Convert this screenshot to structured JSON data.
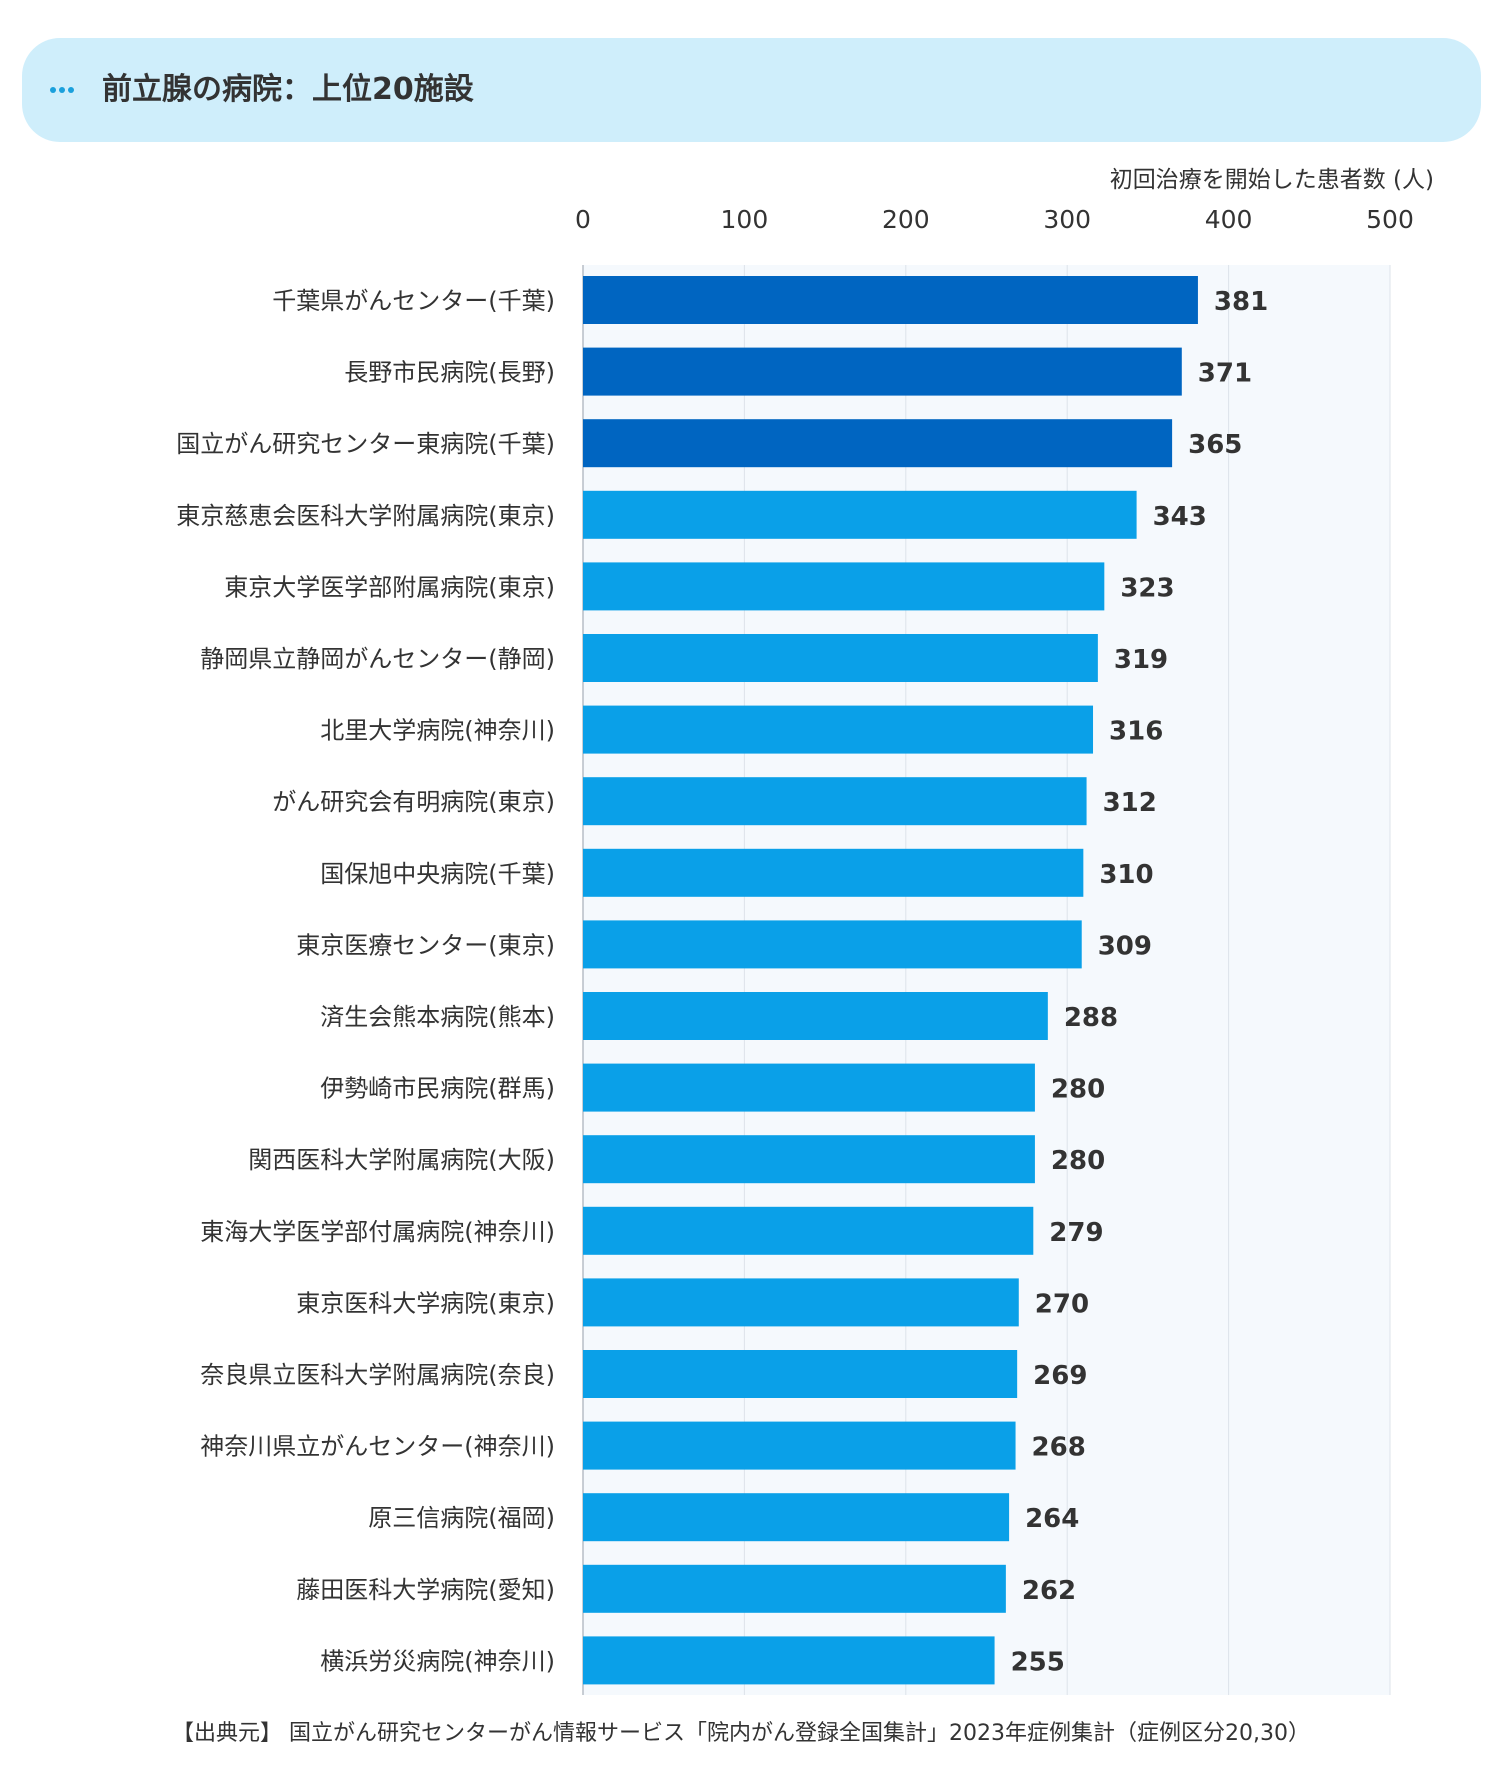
{
  "header": {
    "title": "前立腺の病院：上位20施設",
    "menu_icon": "more-dots-icon"
  },
  "colors": {
    "header_bg": "#cfeefb",
    "accent_dots": "#1aa0dc",
    "bar_top3": "#0065c1",
    "bar_rest": "#0aa0e8",
    "plot_bg": "#f5f9fd",
    "grid": "#dde3ea",
    "text": "#333333"
  },
  "source": {
    "text": "【出典元】 国立がん研究センターがん情報サービス「院内がん登録全国集計」2023年症例集計（症例区分20,30）"
  },
  "chart_data": {
    "type": "bar",
    "orientation": "horizontal",
    "xlabel": "初回治療を開始した患者数 (人)",
    "xlim": [
      0,
      500
    ],
    "xticks": [
      0,
      100,
      200,
      300,
      400,
      500
    ],
    "grid": true,
    "data_labels": true,
    "highlight_top_n": 3,
    "categories": [
      "千葉県がんセンター(千葉)",
      "長野市民病院(長野)",
      "国立がん研究センター東病院(千葉)",
      "東京慈恵会医科大学附属病院(東京)",
      "東京大学医学部附属病院(東京)",
      "静岡県立静岡がんセンター(静岡)",
      "北里大学病院(神奈川)",
      "がん研究会有明病院(東京)",
      "国保旭中央病院(千葉)",
      "東京医療センター(東京)",
      "済生会熊本病院(熊本)",
      "伊勢崎市民病院(群馬)",
      "関西医科大学附属病院(大阪)",
      "東海大学医学部付属病院(神奈川)",
      "東京医科大学病院(東京)",
      "奈良県立医科大学附属病院(奈良)",
      "神奈川県立がんセンター(神奈川)",
      "原三信病院(福岡)",
      "藤田医科大学病院(愛知)",
      "横浜労災病院(神奈川)"
    ],
    "values": [
      381,
      371,
      365,
      343,
      323,
      319,
      316,
      312,
      310,
      309,
      288,
      280,
      280,
      279,
      270,
      269,
      268,
      264,
      262,
      255
    ]
  }
}
